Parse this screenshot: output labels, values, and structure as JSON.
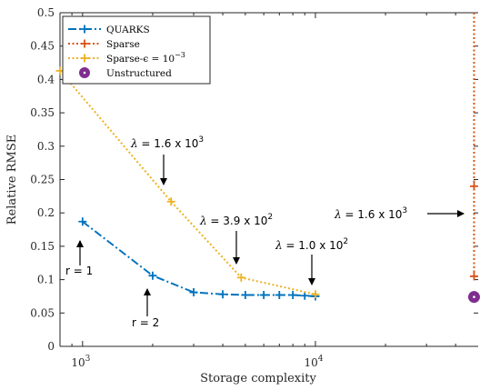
{
  "chart_data": {
    "type": "line",
    "xlabel": "Storage complexity",
    "ylabel": "Relative RMSE",
    "x_scale": "log",
    "xlim": [
      800,
      50000
    ],
    "ylim": [
      0,
      0.5
    ],
    "xticks": [
      {
        "value": 1000,
        "base": "10",
        "exp": "3"
      },
      {
        "value": 10000,
        "base": "10",
        "exp": "4"
      }
    ],
    "yticks": [
      0,
      0.05,
      0.1,
      0.15,
      0.2,
      0.25,
      0.3,
      0.35,
      0.4,
      0.45,
      0.5
    ],
    "ytick_labels": [
      "0",
      "0.05",
      "0.1",
      "0.15",
      "0.2",
      "0.25",
      "0.3",
      "0.35",
      "0.4",
      "0.45",
      "0.5"
    ],
    "grid": false,
    "legend_position": "top-left",
    "series": [
      {
        "name": "QUARKS",
        "color": "#0072BD",
        "style": "dashdot",
        "marker": "plus",
        "x": [
          1000,
          2000,
          3000,
          4000,
          5000,
          6000,
          7000,
          8000,
          9000,
          10000
        ],
        "y": [
          0.187,
          0.106,
          0.081,
          0.078,
          0.077,
          0.077,
          0.077,
          0.077,
          0.076,
          0.075
        ]
      },
      {
        "name": "Sparse",
        "color": "#D95319",
        "style": "dotted",
        "marker": "plus",
        "x": [
          48000,
          48000,
          48000
        ],
        "y": [
          0.5,
          0.24,
          0.105
        ]
      },
      {
        "name": "Sparse-ε = 10⁻³",
        "color": "#EDB120",
        "style": "dotted",
        "marker": "plus",
        "x": [
          800,
          2400,
          4800,
          10000
        ],
        "y": [
          0.413,
          0.217,
          0.103,
          0.078
        ]
      },
      {
        "name": "Unstructured",
        "color": "#7E2F8E",
        "style": "none",
        "marker": "circle",
        "x": [
          48000
        ],
        "y": [
          0.074
        ]
      }
    ],
    "legend_labels": {
      "quarks": "QUARKS",
      "sparse": "Sparse",
      "sparse_eps_prefix": "Sparse-ϵ = 10",
      "sparse_eps_exp": "−3",
      "unstructured": "Unstructured"
    },
    "annotations": [
      {
        "id": "lam1",
        "lambda": "λ",
        "text": " = 1.6 x 10",
        "exp": "3"
      },
      {
        "id": "lam2",
        "lambda": "λ",
        "text": " = 3.9 x 10",
        "exp": "2"
      },
      {
        "id": "lam3",
        "lambda": "λ",
        "text": " = 1.0 x 10",
        "exp": "2"
      },
      {
        "id": "lam4",
        "lambda": "λ",
        "text": " = 1.6 x 10",
        "exp": "3"
      },
      {
        "id": "r1",
        "text": "r = 1"
      },
      {
        "id": "r2",
        "text": "r = 2"
      }
    ]
  }
}
